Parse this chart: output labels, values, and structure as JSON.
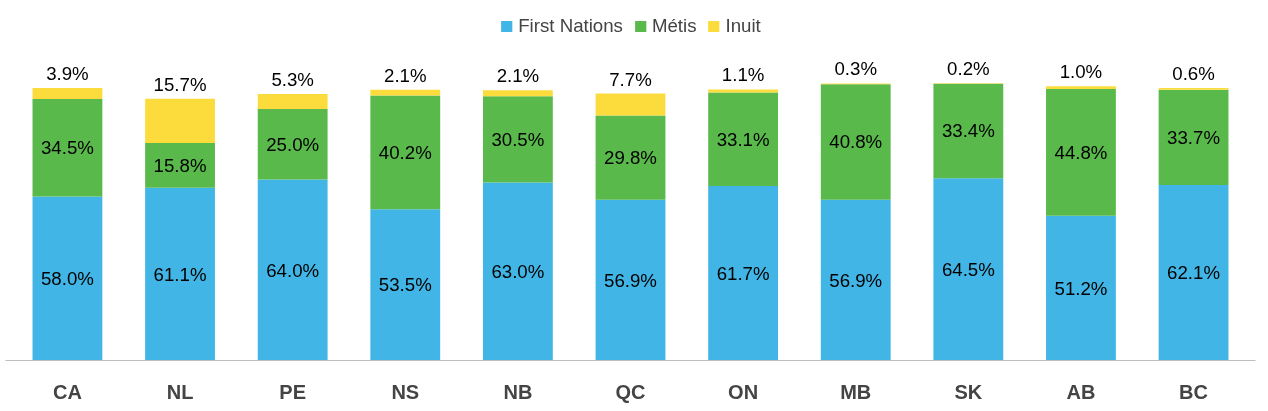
{
  "chart_data": {
    "type": "bar",
    "stacked": true,
    "categories": [
      "CA",
      "NL",
      "PE",
      "NS",
      "NB",
      "QC",
      "ON",
      "MB",
      "SK",
      "AB",
      "BC"
    ],
    "series": [
      {
        "name": "First Nations",
        "color": "#41b6e6",
        "values": [
          58.0,
          61.1,
          64.0,
          53.5,
          63.0,
          56.9,
          61.7,
          56.9,
          64.5,
          51.2,
          62.1
        ],
        "value_labels": [
          "58.0%",
          "61.1%",
          "64.0%",
          "53.5%",
          "63.0%",
          "56.9%",
          "61.7%",
          "56.9%",
          "64.5%",
          "51.2%",
          "62.1%"
        ]
      },
      {
        "name": "Métis",
        "color": "#59b94b",
        "values": [
          34.5,
          15.8,
          25.0,
          40.2,
          30.5,
          29.8,
          33.1,
          40.8,
          33.4,
          44.8,
          33.7
        ],
        "value_labels": [
          "34.5%",
          "15.8%",
          "25.0%",
          "40.2%",
          "30.5%",
          "29.8%",
          "33.1%",
          "40.8%",
          "33.4%",
          "44.8%",
          "33.7%"
        ]
      },
      {
        "name": "Inuit",
        "color": "#fcdc3c",
        "values": [
          3.9,
          15.7,
          5.3,
          2.1,
          2.1,
          7.7,
          1.1,
          0.3,
          0.2,
          1.0,
          0.6
        ],
        "value_labels": [
          "3.9%",
          "15.7%",
          "5.3%",
          "2.1%",
          "2.1%",
          "7.7%",
          "1.1%",
          "0.3%",
          "0.2%",
          "1.0%",
          "0.6%"
        ]
      }
    ],
    "grid": false,
    "legend": "top"
  }
}
